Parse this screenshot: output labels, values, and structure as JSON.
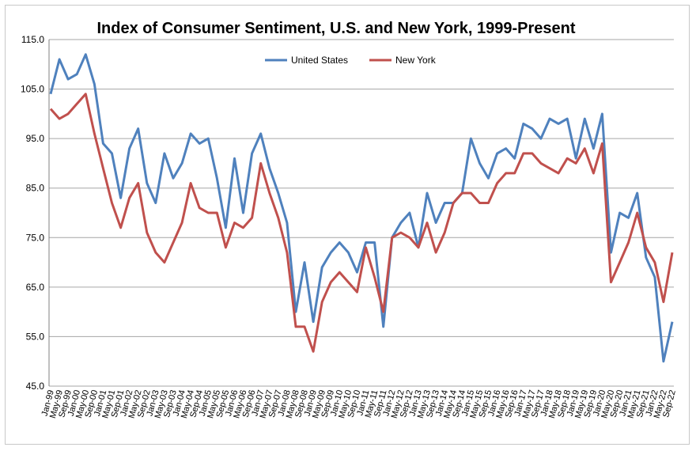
{
  "chart_data": {
    "type": "line",
    "title": "Index of Consumer Sentiment, U.S. and New York, 1999-Present",
    "xlabel": "",
    "ylabel": "",
    "ylim": [
      45,
      115
    ],
    "y_ticks": [
      "45.0",
      "55.0",
      "65.0",
      "75.0",
      "85.0",
      "95.0",
      "105.0",
      "115.0"
    ],
    "grid": true,
    "legend_position": "top-center",
    "x": [
      "Jan-99",
      "May-99",
      "Sep-99",
      "Jan-00",
      "May-00",
      "Sep-00",
      "Jan-01",
      "May-01",
      "Sep-01",
      "Jan-02",
      "May-02",
      "Sep-02",
      "Jan-03",
      "May-03",
      "Sep-03",
      "Jan-04",
      "May-04",
      "Sep-04",
      "Jan-05",
      "May-05",
      "Sep-05",
      "Jan-06",
      "May-06",
      "Sep-06",
      "Jan-07",
      "May-07",
      "Sep-07",
      "Jan-08",
      "May-08",
      "Sep-08",
      "Jan-09",
      "May-09",
      "Sep-09",
      "Jan-10",
      "May-10",
      "Sep-10",
      "Jan-11",
      "May-11",
      "Sep-11",
      "Jan-12",
      "May-12",
      "Sep-12",
      "Jan-13",
      "May-13",
      "Sep-13",
      "Jan-14",
      "May-14",
      "Sep-14",
      "Jan-15",
      "May-15",
      "Sep-15",
      "Jan-16",
      "May-16",
      "Sep-16",
      "Jan-17",
      "May-17",
      "Sep-17",
      "Jan-18",
      "May-18",
      "Sep-18",
      "Jan-19",
      "May-19",
      "Sep-19",
      "Jan-20",
      "May-20",
      "Sep-20",
      "Jan-21",
      "May-21",
      "Sep-21",
      "Jan-22",
      "May-22",
      "Sep-22"
    ],
    "x_tick_labels": [
      "Jan-99",
      "May-99",
      "Sep-99",
      "Jan-00",
      "May-00",
      "Sep-00",
      "Jan-01",
      "May-01",
      "Sep-01",
      "Jan-02",
      "May-02",
      "Sep-02",
      "Jan-03",
      "May-03",
      "Sep-03",
      "Jan-04",
      "May-04",
      "Sep-04",
      "Jan-05",
      "May-05",
      "Sep-05",
      "Jan-06",
      "May-06",
      "Sep-06",
      "Jan-07",
      "May-07",
      "Sep-07",
      "Jan-08",
      "May-08",
      "Sep-08",
      "Jan-09",
      "May-09",
      "Sep-09",
      "Jan-10",
      "May-10",
      "Sep-10",
      "Jan-11",
      "May-11",
      "Sep-11",
      "Jan-12",
      "May-12",
      "Sep-12",
      "Jan-13",
      "May-13",
      "Sep-13",
      "Jan-14",
      "May-14",
      "Sep-14",
      "Jan-15",
      "May-15",
      "Sep-15",
      "Jan-16",
      "May-16",
      "Sep-16",
      "Jan-17",
      "May-17",
      "Sep-17",
      "Jan-18",
      "May-18",
      "Sep-18",
      "Jan-19",
      "May-19",
      "Sep-19",
      "Jan-20",
      "May-20",
      "Sep-20",
      "Jan-21",
      "May-21",
      "Sep-21",
      "Jan-22",
      "May-22",
      "Sep-22"
    ],
    "series": [
      {
        "name": "United States",
        "color": "#4f81bd",
        "values": [
          104,
          111,
          107,
          108,
          112,
          106,
          94,
          92,
          83,
          93,
          97,
          86,
          82,
          92,
          87,
          90,
          96,
          94,
          95,
          87,
          77,
          91,
          80,
          92,
          96,
          89,
          84,
          78,
          60,
          70,
          58,
          69,
          72,
          74,
          72,
          68,
          74,
          74,
          57,
          75,
          78,
          80,
          73,
          84,
          78,
          82,
          82,
          84,
          95,
          90,
          87,
          92,
          93,
          91,
          98,
          97,
          95,
          99,
          98,
          99,
          91,
          99,
          93,
          100,
          72,
          80,
          79,
          84,
          71,
          67,
          50,
          58
        ]
      },
      {
        "name": "New York",
        "color": "#c0504d",
        "values": [
          101,
          99,
          100,
          102,
          104,
          96,
          89,
          82,
          77,
          83,
          86,
          76,
          72,
          70,
          74,
          78,
          86,
          81,
          80,
          80,
          73,
          78,
          77,
          79,
          90,
          84,
          79,
          72,
          57,
          57,
          52,
          62,
          66,
          68,
          66,
          64,
          73,
          67,
          60,
          75,
          76,
          75,
          73,
          78,
          72,
          76,
          82,
          84,
          84,
          82,
          82,
          86,
          88,
          88,
          92,
          92,
          90,
          89,
          88,
          91,
          90,
          93,
          88,
          94,
          66,
          70,
          74,
          80,
          73,
          70,
          62,
          72
        ]
      }
    ]
  }
}
